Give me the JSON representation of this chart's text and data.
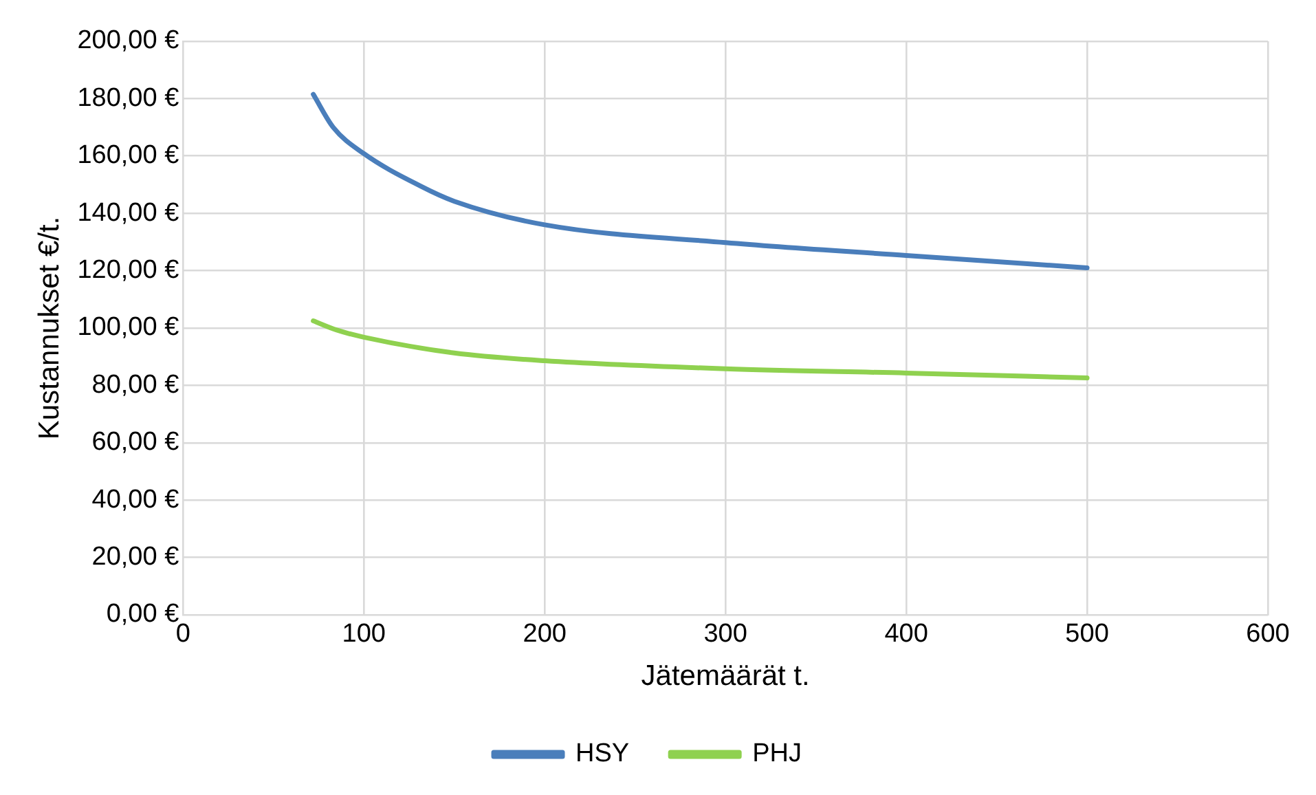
{
  "chart_data": {
    "type": "line",
    "xlabel": "Jätemäärät t.",
    "ylabel": "Kustannukset €/t.",
    "series": [
      {
        "name": "HSY",
        "color": "#4a7ebb",
        "x": [
          72,
          83,
          100,
          131,
          150,
          200,
          300,
          400,
          500
        ],
        "values": [
          181.5,
          170,
          160.8,
          149.6,
          144.2,
          136,
          129.8,
          125.3,
          121
        ]
      },
      {
        "name": "PHJ",
        "color": "#8fd14f",
        "x": [
          72,
          85,
          100,
          150,
          200,
          300,
          400,
          500
        ],
        "values": [
          102.5,
          99.3,
          96.8,
          91.3,
          88.6,
          85.8,
          84.3,
          82.6
        ]
      }
    ],
    "xlim": [
      0,
      600
    ],
    "xticks": [
      0,
      100,
      200,
      300,
      400,
      500,
      600
    ],
    "ylim": [
      0,
      200
    ],
    "yticks": [
      {
        "value": 0,
        "label": "0,00 €"
      },
      {
        "value": 20,
        "label": "20,00 €"
      },
      {
        "value": 40,
        "label": "40,00 €"
      },
      {
        "value": 60,
        "label": "60,00 €"
      },
      {
        "value": 80,
        "label": "80,00 €"
      },
      {
        "value": 100,
        "label": "100,00 €"
      },
      {
        "value": 120,
        "label": "120,00 €"
      },
      {
        "value": 140,
        "label": "140,00 €"
      },
      {
        "value": 160,
        "label": "160,00 €"
      },
      {
        "value": 180,
        "label": "180,00 €"
      },
      {
        "value": 200,
        "label": "200,00 €"
      }
    ],
    "grid": true,
    "legend": "bottom",
    "marker": "none",
    "line_style": "solid"
  }
}
